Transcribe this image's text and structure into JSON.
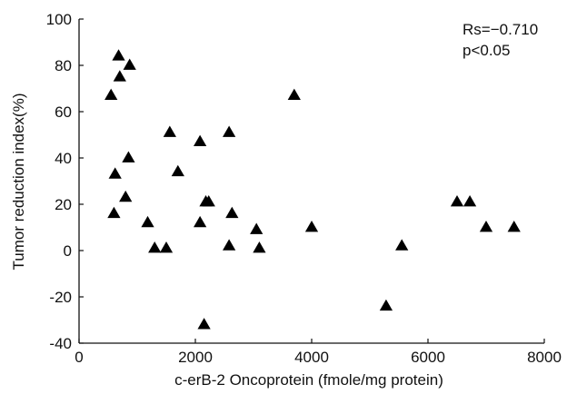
{
  "chart_data": {
    "type": "scatter",
    "title": "",
    "xlabel": "c-erB-2 Oncoprotein (fmole/mg protein)",
    "ylabel": "Tumor reduction index(%)",
    "xlim": [
      0,
      8000
    ],
    "ylim": [
      -40,
      100
    ],
    "xticks": [
      0,
      2000,
      4000,
      6000,
      8000
    ],
    "yticks": [
      -40,
      -20,
      0,
      20,
      40,
      60,
      80,
      100
    ],
    "grid": false,
    "marker": "filled-triangle",
    "marker_color": "#000000",
    "annotations": [
      "Rs=−0.710",
      "p<0.05"
    ],
    "points": [
      {
        "x": 550,
        "y": 67
      },
      {
        "x": 600,
        "y": 16
      },
      {
        "x": 620,
        "y": 33
      },
      {
        "x": 680,
        "y": 84
      },
      {
        "x": 700,
        "y": 75
      },
      {
        "x": 800,
        "y": 23
      },
      {
        "x": 850,
        "y": 40
      },
      {
        "x": 870,
        "y": 80
      },
      {
        "x": 1180,
        "y": 12
      },
      {
        "x": 1300,
        "y": 1
      },
      {
        "x": 1500,
        "y": 1
      },
      {
        "x": 1560,
        "y": 51
      },
      {
        "x": 1700,
        "y": 34
      },
      {
        "x": 2080,
        "y": 12
      },
      {
        "x": 2080,
        "y": 47
      },
      {
        "x": 2150,
        "y": -32
      },
      {
        "x": 2180,
        "y": 21
      },
      {
        "x": 2230,
        "y": 21
      },
      {
        "x": 2580,
        "y": 51
      },
      {
        "x": 2580,
        "y": 2
      },
      {
        "x": 2630,
        "y": 16
      },
      {
        "x": 3050,
        "y": 9
      },
      {
        "x": 3100,
        "y": 1
      },
      {
        "x": 3700,
        "y": 67
      },
      {
        "x": 4000,
        "y": 10
      },
      {
        "x": 5280,
        "y": -24
      },
      {
        "x": 5550,
        "y": 2
      },
      {
        "x": 6500,
        "y": 21
      },
      {
        "x": 6720,
        "y": 21
      },
      {
        "x": 7000,
        "y": 10
      },
      {
        "x": 7480,
        "y": 10
      }
    ]
  }
}
